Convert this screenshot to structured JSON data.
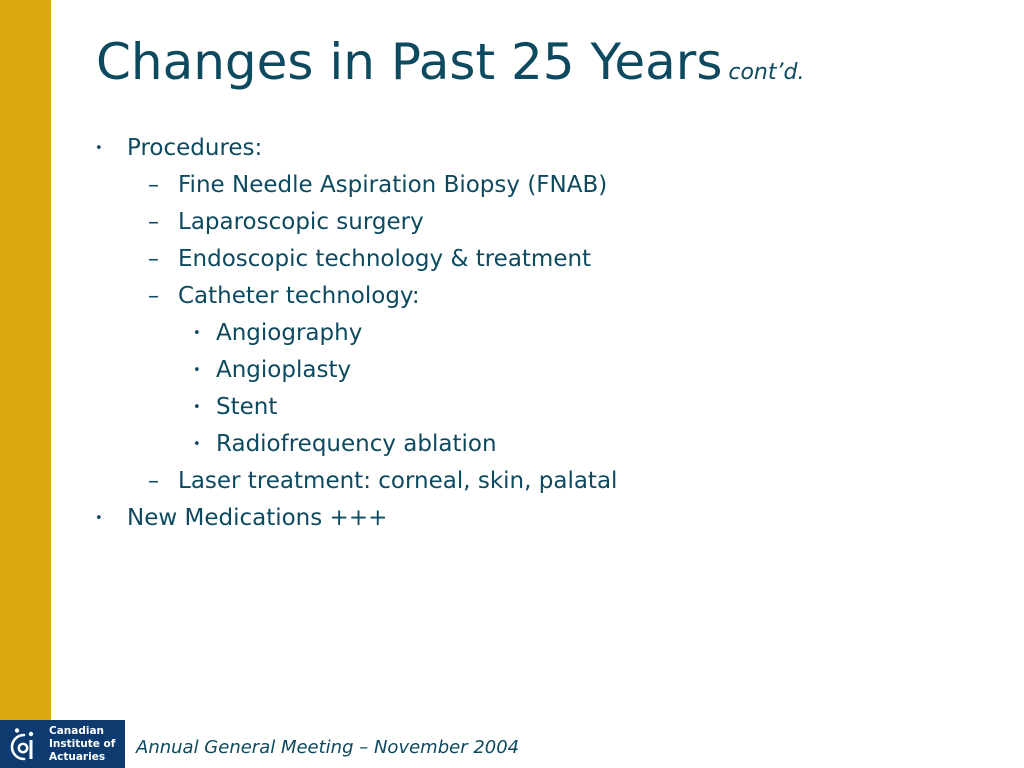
{
  "slide": {
    "title": "Changes in Past 25 Years",
    "title_suffix": "cont’d.",
    "bullets": [
      {
        "level": 1,
        "marker": "•",
        "text": "Procedures:"
      },
      {
        "level": 2,
        "marker": "–",
        "text": "Fine Needle Aspiration Biopsy (FNAB)"
      },
      {
        "level": 2,
        "marker": "–",
        "text": "Laparoscopic surgery"
      },
      {
        "level": 2,
        "marker": "–",
        "text": "Endoscopic technology & treatment"
      },
      {
        "level": 2,
        "marker": "–",
        "text": "Catheter technology:"
      },
      {
        "level": 3,
        "marker": "•",
        "text": "Angiography"
      },
      {
        "level": 3,
        "marker": "•",
        "text": "Angioplasty"
      },
      {
        "level": 3,
        "marker": "•",
        "text": "Stent"
      },
      {
        "level": 3,
        "marker": "•",
        "text": "Radiofrequency ablation"
      },
      {
        "level": 2,
        "marker": "–",
        "text": "Laser treatment: corneal, skin, palatal"
      },
      {
        "level": 1,
        "marker": "•",
        "text": "New Medications +++"
      }
    ]
  },
  "footer": {
    "logo": {
      "line1": "Canadian",
      "line2": "Institute of",
      "line3": "Actuaries"
    },
    "text": "Annual General Meeting – November 2004"
  },
  "colors": {
    "accent_bar": "#dca910",
    "text": "#0d4a5f",
    "logo_background": "#0d3b70"
  }
}
